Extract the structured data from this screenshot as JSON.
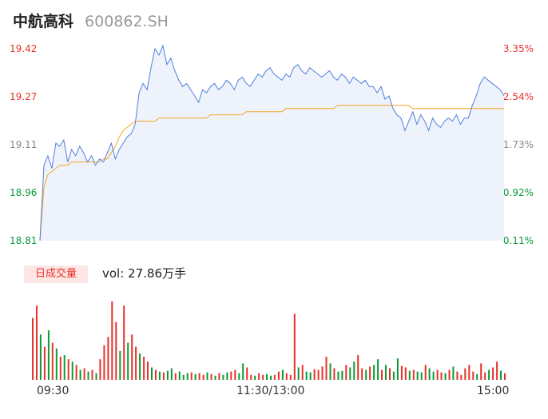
{
  "stock": {
    "name": "中航高科",
    "code": "600862.SH"
  },
  "chart_data": {
    "type": "line",
    "price_axis": {
      "labels": [
        "19.42",
        "19.27",
        "19.11",
        "18.96",
        "18.81"
      ],
      "range": [
        18.81,
        19.42
      ]
    },
    "pct_axis": {
      "labels": [
        "3.35%",
        "2.54%",
        "1.73%",
        "0.92%",
        "0.11%"
      ]
    },
    "volume": {
      "label": "日成交量",
      "summary": "vol: 27.86万手"
    },
    "xlabels": [
      "09:30",
      "11:30/13:00",
      "15:00"
    ],
    "colors": {
      "price_line": "#4f7fe0",
      "avg_line": "#f5a623",
      "fill": "#eef2fb",
      "up": "#e8332b",
      "down": "#0d9a3b"
    },
    "price": [
      18.81,
      19.05,
      19.08,
      19.04,
      19.12,
      19.11,
      19.13,
      19.06,
      19.1,
      19.08,
      19.11,
      19.09,
      19.06,
      19.08,
      19.05,
      19.07,
      19.06,
      19.09,
      19.12,
      19.07,
      19.1,
      19.12,
      19.14,
      19.15,
      19.18,
      19.28,
      19.31,
      19.29,
      19.36,
      19.42,
      19.4,
      19.43,
      19.37,
      19.39,
      19.35,
      19.32,
      19.3,
      19.31,
      19.29,
      19.27,
      19.25,
      19.29,
      19.28,
      19.3,
      19.31,
      19.29,
      19.3,
      19.32,
      19.31,
      19.29,
      19.32,
      19.33,
      19.31,
      19.3,
      19.32,
      19.34,
      19.33,
      19.35,
      19.36,
      19.34,
      19.33,
      19.32,
      19.34,
      19.33,
      19.36,
      19.37,
      19.35,
      19.34,
      19.36,
      19.35,
      19.34,
      19.33,
      19.34,
      19.35,
      19.33,
      19.32,
      19.34,
      19.33,
      19.31,
      19.33,
      19.32,
      19.31,
      19.32,
      19.3,
      19.3,
      19.28,
      19.3,
      19.26,
      19.27,
      19.23,
      19.21,
      19.2,
      19.16,
      19.19,
      19.22,
      19.18,
      19.21,
      19.19,
      19.16,
      19.2,
      19.18,
      19.17,
      19.19,
      19.2,
      19.19,
      19.21,
      19.18,
      19.2,
      19.2,
      19.24,
      19.27,
      19.31,
      19.33,
      19.32,
      19.31,
      19.3,
      19.29,
      19.27
    ],
    "avg": [
      18.81,
      18.98,
      19.02,
      19.03,
      19.04,
      19.05,
      19.05,
      19.05,
      19.06,
      19.06,
      19.06,
      19.06,
      19.06,
      19.06,
      19.06,
      19.06,
      19.07,
      19.07,
      19.09,
      19.11,
      19.14,
      19.16,
      19.17,
      19.18,
      19.19,
      19.19,
      19.19,
      19.19,
      19.19,
      19.19,
      19.2,
      19.2,
      19.2,
      19.2,
      19.2,
      19.2,
      19.2,
      19.2,
      19.2,
      19.2,
      19.2,
      19.2,
      19.2,
      19.21,
      19.21,
      19.21,
      19.21,
      19.21,
      19.21,
      19.21,
      19.21,
      19.21,
      19.22,
      19.22,
      19.22,
      19.22,
      19.22,
      19.22,
      19.22,
      19.22,
      19.22,
      19.22,
      19.23,
      19.23,
      19.23,
      19.23,
      19.23,
      19.23,
      19.23,
      19.23,
      19.23,
      19.23,
      19.23,
      19.23,
      19.23,
      19.24,
      19.24,
      19.24,
      19.24,
      19.24,
      19.24,
      19.24,
      19.24,
      19.24,
      19.24,
      19.24,
      19.24,
      19.24,
      19.24,
      19.24,
      19.24,
      19.24,
      19.24,
      19.24,
      19.23,
      19.23,
      19.23,
      19.23,
      19.23,
      19.23,
      19.23,
      19.23,
      19.23,
      19.23,
      19.23,
      19.23,
      19.23,
      19.23,
      19.23,
      19.23,
      19.23,
      19.23,
      19.23,
      19.23,
      19.23,
      19.23,
      19.23,
      19.23
    ],
    "vol": [
      75,
      90,
      55,
      40,
      60,
      45,
      38,
      28,
      30,
      25,
      22,
      18,
      12,
      14,
      10,
      12,
      8,
      25,
      42,
      52,
      95,
      70,
      35,
      90,
      45,
      55,
      40,
      32,
      28,
      22,
      15,
      12,
      10,
      9,
      11,
      14,
      8,
      10,
      6,
      8,
      9,
      7,
      8,
      6,
      9,
      7,
      5,
      8,
      6,
      9,
      10,
      12,
      8,
      20,
      15,
      6,
      5,
      8,
      6,
      7,
      5,
      6,
      10,
      12,
      8,
      6,
      80,
      15,
      18,
      10,
      9,
      13,
      12,
      16,
      28,
      20,
      14,
      10,
      11,
      18,
      15,
      22,
      30,
      14,
      12,
      16,
      18,
      25,
      12,
      18,
      14,
      10,
      26,
      17,
      15,
      11,
      12,
      10,
      9,
      18,
      14,
      10,
      12,
      9,
      8,
      12,
      16,
      10,
      6,
      14,
      18,
      10,
      7,
      20,
      9,
      12,
      15,
      22,
      11,
      8
    ],
    "vol_colors": [
      "u",
      "u",
      "d",
      "u",
      "d",
      "u",
      "d",
      "u",
      "d",
      "u",
      "d",
      "u",
      "d",
      "u",
      "d",
      "u",
      "d",
      "u",
      "u",
      "u",
      "u",
      "u",
      "d",
      "u",
      "d",
      "u",
      "u",
      "d",
      "u",
      "u",
      "d",
      "u",
      "d",
      "u",
      "d",
      "d",
      "u",
      "d",
      "d",
      "d",
      "u",
      "d",
      "u",
      "u",
      "d",
      "u",
      "d",
      "u",
      "d",
      "d",
      "u",
      "u",
      "d",
      "d",
      "u",
      "u",
      "d",
      "u",
      "u",
      "d",
      "d",
      "u",
      "u",
      "d",
      "u",
      "u",
      "u",
      "d",
      "u",
      "d",
      "d",
      "u",
      "u",
      "u",
      "u",
      "d",
      "u",
      "d",
      "d",
      "u",
      "d",
      "d",
      "u",
      "u",
      "d",
      "u",
      "d",
      "d",
      "u",
      "d",
      "u",
      "d",
      "d",
      "u",
      "u",
      "d",
      "u",
      "d",
      "d",
      "u",
      "d",
      "d",
      "u",
      "u",
      "d",
      "u",
      "d",
      "u",
      "u",
      "u",
      "u",
      "u",
      "d",
      "u",
      "u",
      "d",
      "u",
      "u",
      "d",
      "u"
    ]
  }
}
